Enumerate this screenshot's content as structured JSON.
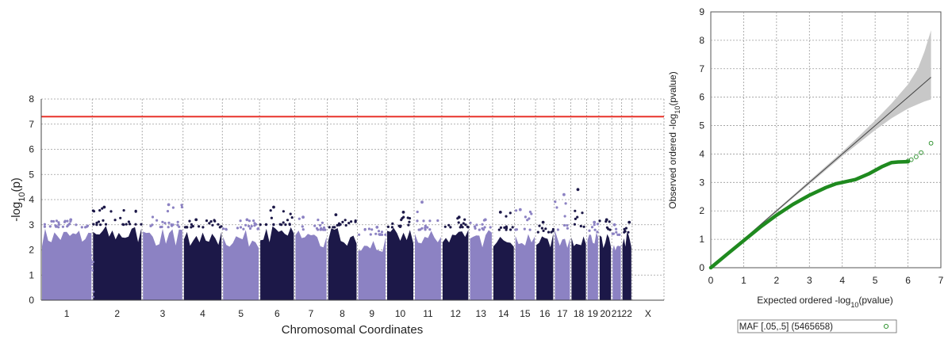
{
  "chart_data": [
    {
      "type": "scatter",
      "subtype": "manhattan",
      "xlabel": "Chromosomal Coordinates",
      "ylabel_base": "-log",
      "ylabel_sub": "10",
      "ylabel_tail": "(p)",
      "ylim": [
        0,
        8
      ],
      "yticks": [
        "0",
        "1",
        "2",
        "3",
        "4",
        "5",
        "6",
        "7",
        "8"
      ],
      "grid": true,
      "significance_line": 7.3,
      "colors": {
        "odd": "#8c82c3",
        "even": "#1c1848",
        "threshold": "#e8332b"
      },
      "chromosomes": [
        {
          "label": "1",
          "band_top": 2.9,
          "peak": 3.2
        },
        {
          "label": "2",
          "band_top": 3.0,
          "peak": 3.7
        },
        {
          "label": "3",
          "band_top": 2.9,
          "peak": 3.8
        },
        {
          "label": "4",
          "band_top": 2.9,
          "peak": 3.2
        },
        {
          "label": "5",
          "band_top": 2.8,
          "peak": 3.2
        },
        {
          "label": "6",
          "band_top": 3.0,
          "peak": 3.7
        },
        {
          "label": "7",
          "band_top": 2.8,
          "peak": 3.3
        },
        {
          "label": "8",
          "band_top": 2.9,
          "peak": 3.4
        },
        {
          "label": "9",
          "band_top": 2.6,
          "peak": 2.9
        },
        {
          "label": "10",
          "band_top": 2.9,
          "peak": 3.5
        },
        {
          "label": "11",
          "band_top": 2.8,
          "peak": 3.9
        },
        {
          "label": "12",
          "band_top": 2.9,
          "peak": 3.3
        },
        {
          "label": "13",
          "band_top": 2.8,
          "peak": 3.2
        },
        {
          "label": "14",
          "band_top": 2.8,
          "peak": 3.5
        },
        {
          "label": "15",
          "band_top": 2.8,
          "peak": 3.6
        },
        {
          "label": "16",
          "band_top": 2.7,
          "peak": 3.1
        },
        {
          "label": "17",
          "band_top": 2.8,
          "peak": 4.2
        },
        {
          "label": "18",
          "band_top": 2.9,
          "peak": 4.4
        },
        {
          "label": "19",
          "band_top": 2.7,
          "peak": 3.1
        },
        {
          "label": "20",
          "band_top": 2.8,
          "peak": 3.2
        },
        {
          "label": "21",
          "band_top": 2.6,
          "peak": 3.0
        },
        {
          "label": "22",
          "band_top": 2.7,
          "peak": 3.1
        },
        {
          "label": "X",
          "band_top": 0,
          "peak": 0
        }
      ]
    },
    {
      "type": "scatter",
      "subtype": "qq",
      "xlabel_base": "Expected ordered -log",
      "xlabel_sub": "10",
      "xlabel_tail": "(pvalue)",
      "ylabel_base": "Observed ordered -log",
      "ylabel_sub": "10",
      "ylabel_tail": "(pvalue)",
      "xlim": [
        0,
        7
      ],
      "ylim": [
        0,
        9
      ],
      "xticks": [
        "0",
        "1",
        "2",
        "3",
        "4",
        "5",
        "6",
        "7"
      ],
      "yticks": [
        "0",
        "1",
        "2",
        "3",
        "4",
        "5",
        "6",
        "7",
        "8",
        "9"
      ],
      "grid": true,
      "colors": {
        "points": "#1f8a1f",
        "band": "#c8c8c8",
        "line": "#444444"
      },
      "confidence_band": {
        "x": [
          0,
          1,
          2,
          3,
          4,
          4.5,
          5,
          5.5,
          6,
          6.3,
          6.5,
          6.7
        ],
        "upper": [
          0,
          1.02,
          2.04,
          3.06,
          4.08,
          4.62,
          5.18,
          5.78,
          6.45,
          7.0,
          7.6,
          8.35
        ],
        "lower": [
          0,
          0.98,
          1.96,
          2.94,
          3.92,
          4.38,
          4.84,
          5.26,
          5.6,
          5.75,
          5.85,
          5.92
        ]
      },
      "observed": {
        "x": [
          0,
          0.5,
          1.0,
          1.5,
          2.0,
          2.5,
          3.0,
          3.5,
          3.8,
          4.0,
          4.4,
          4.8,
          5.2,
          5.5,
          5.7,
          6.0
        ],
        "y": [
          0,
          0.48,
          0.95,
          1.42,
          1.85,
          2.23,
          2.55,
          2.82,
          2.95,
          3.0,
          3.1,
          3.3,
          3.55,
          3.7,
          3.72,
          3.73
        ]
      },
      "outliers": [
        {
          "x": 6.0,
          "y": 3.75
        },
        {
          "x": 6.1,
          "y": 3.8
        },
        {
          "x": 6.25,
          "y": 3.9
        },
        {
          "x": 6.4,
          "y": 4.05
        },
        {
          "x": 6.7,
          "y": 4.38
        }
      ],
      "legend": {
        "label": "MAF [.05,.5] (5465658)",
        "position": "bottom-center"
      }
    }
  ]
}
